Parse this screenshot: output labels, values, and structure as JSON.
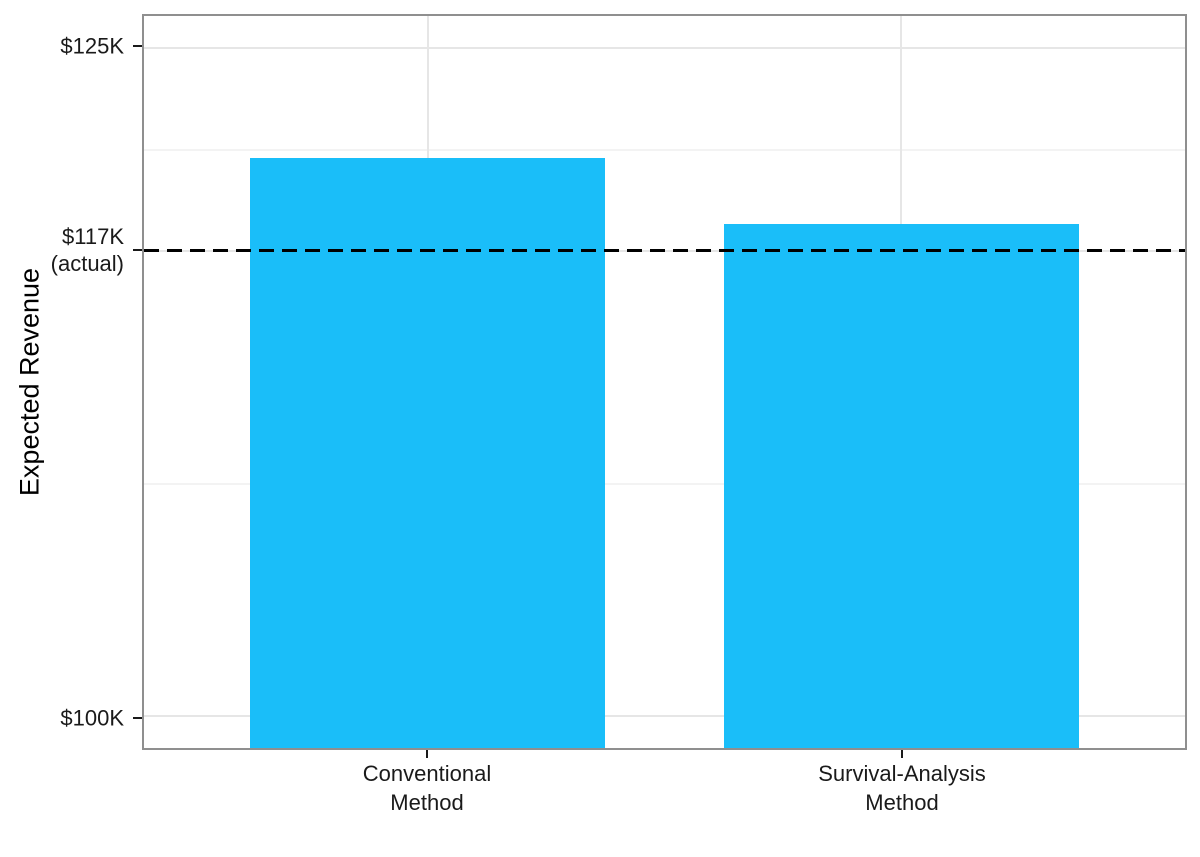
{
  "chart_data": {
    "type": "bar",
    "title": "",
    "xlabel": "",
    "ylabel": "Expected Revenue",
    "categories": [
      "Conventional\nMethod",
      "Survival-Analysis\nMethod"
    ],
    "values": [
      120.9,
      118.4
    ],
    "value_unit": "thousand dollars",
    "ylim": [
      98.8,
      126.2
    ],
    "y_ticks": [
      {
        "value": 125,
        "label": "$125K"
      },
      {
        "value": 117.4,
        "label": "$117K\n(actual)"
      },
      {
        "value": 100,
        "label": "$100K"
      }
    ],
    "y_minor_gridlines": [
      121.2,
      108.7
    ],
    "x_domain": [
      0.4,
      2.6
    ],
    "bar_centers_units": [
      1,
      2
    ],
    "bar_width_units": 0.75,
    "reference_line": {
      "value": 117.4,
      "label": "$117K (actual)",
      "style": "dashed",
      "color": "#000000"
    },
    "grid": "on",
    "legend": "none",
    "colors": {
      "bar_fill": "#1abef9",
      "major_grid": "#e6e6e6",
      "minor_grid": "#f3f3f3",
      "panel_border": "#8f8f8f",
      "axis_text": "#1a1a1a",
      "reference_line": "#000000"
    }
  }
}
